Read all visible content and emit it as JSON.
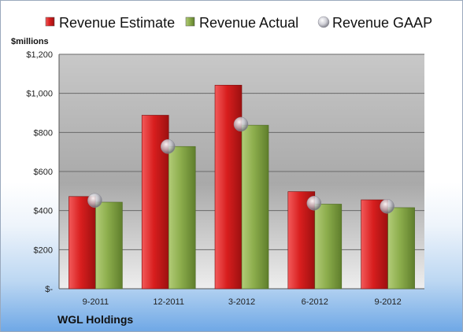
{
  "chart_data": {
    "type": "bar",
    "unit_label": "$millions",
    "company": "WGL Holdings",
    "categories": [
      "9-2011",
      "12-2011",
      "3-2012",
      "6-2012",
      "9-2012"
    ],
    "series": [
      {
        "name": "Revenue Estimate",
        "kind": "bar",
        "color": "#e02020",
        "values": [
          472,
          888,
          1042,
          497,
          455
        ]
      },
      {
        "name": "Revenue Actual",
        "kind": "bar",
        "color": "#8fb050",
        "values": [
          443,
          728,
          837,
          433,
          415
        ]
      },
      {
        "name": "Revenue GAAP",
        "kind": "marker",
        "color": "#c8c8d0",
        "values": [
          452,
          728,
          842,
          438,
          422
        ]
      }
    ],
    "ylim": [
      0,
      1200
    ],
    "yticks": [
      {
        "value": 0,
        "label": "$-"
      },
      {
        "value": 200,
        "label": "$200"
      },
      {
        "value": 400,
        "label": "$400"
      },
      {
        "value": 600,
        "label": "$600"
      },
      {
        "value": 800,
        "label": "$800"
      },
      {
        "value": 1000,
        "label": "$1,000"
      },
      {
        "value": 1200,
        "label": "$1,200"
      }
    ],
    "grid": true,
    "legend_position": "top"
  }
}
